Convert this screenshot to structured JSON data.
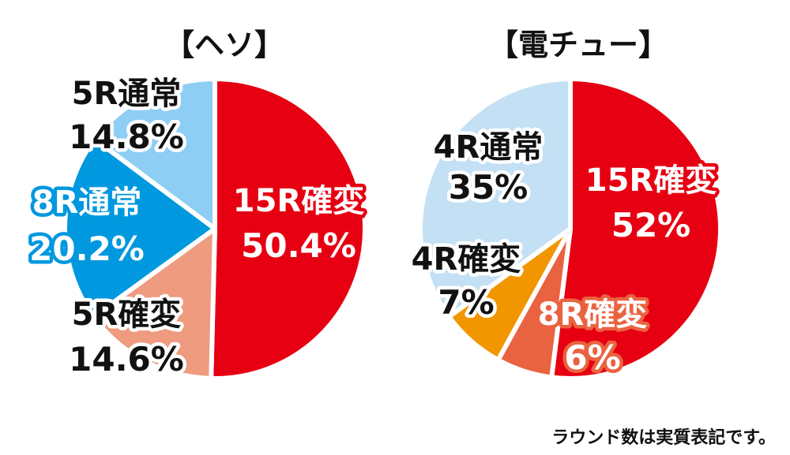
{
  "chart_data": [
    {
      "type": "pie",
      "title": "【ヘソ】",
      "slices": [
        {
          "label": "15R確変",
          "value": 50.4,
          "value_label": "50.4%",
          "color": "#e60012",
          "text_color": "#ffffff",
          "stroke_color": "#e60012"
        },
        {
          "label": "5R確変",
          "value": 14.6,
          "value_label": "14.6%",
          "color": "#ee9b7f",
          "text_color": "#111111",
          "stroke_color": "#ffffff"
        },
        {
          "label": "8R通常",
          "value": 20.2,
          "value_label": "20.2%",
          "color": "#0098df",
          "text_color": "#ffffff",
          "stroke_color": "#0098df"
        },
        {
          "label": "5R通常",
          "value": 14.8,
          "value_label": "14.8%",
          "color": "#8ecef5",
          "text_color": "#111111",
          "stroke_color": "#ffffff"
        }
      ]
    },
    {
      "type": "pie",
      "title": "【電チュー】",
      "slices": [
        {
          "label": "15R確変",
          "value": 52,
          "value_label": "52%",
          "color": "#e60012",
          "text_color": "#ffffff",
          "stroke_color": "#e60012"
        },
        {
          "label": "8R確変",
          "value": 6,
          "value_label": "6%",
          "color": "#ea6341",
          "text_color": "#ffffff",
          "stroke_color": "#ea6341"
        },
        {
          "label": "4R確変",
          "value": 7,
          "value_label": "7%",
          "color": "#f29600",
          "text_color": "#111111",
          "stroke_color": "#ffffff"
        },
        {
          "label": "4R通常",
          "value": 35,
          "value_label": "35%",
          "color": "#c4e0f4",
          "text_color": "#111111",
          "stroke_color": "#ffffff"
        }
      ]
    }
  ],
  "footnote": "ラウンド数は実質表記です。"
}
